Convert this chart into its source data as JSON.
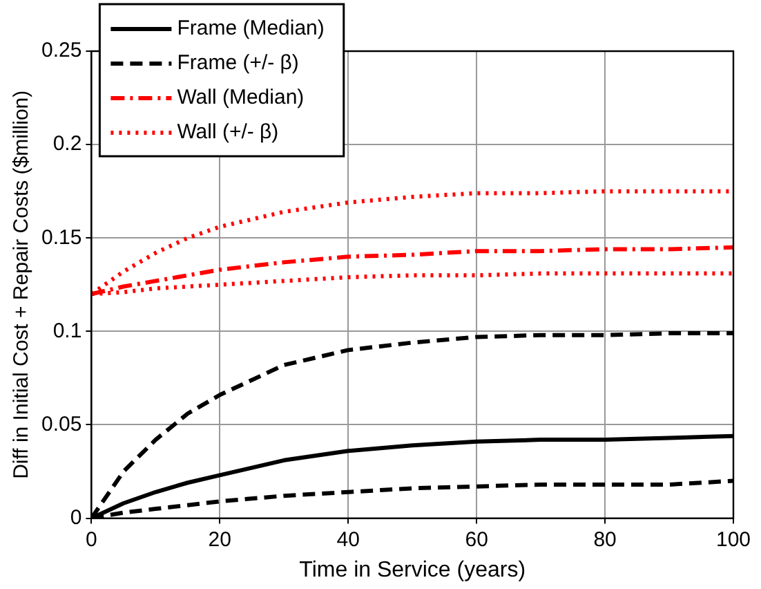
{
  "chart_data": {
    "type": "line",
    "xlabel": "Time in Service (years)",
    "ylabel": "Diff in Initial Cost + Repair Costs ($million)",
    "xlim": [
      0,
      100
    ],
    "xticks": [
      0,
      20,
      40,
      60,
      80,
      100
    ],
    "ylim": [
      0,
      0.25
    ],
    "yticks": [
      0,
      0.05,
      0.1,
      0.15,
      0.2,
      0.25
    ],
    "grid": true,
    "legend": "top left",
    "marker": "none",
    "x": [
      0,
      5,
      10,
      15,
      20,
      30,
      40,
      50,
      60,
      70,
      80,
      90,
      100
    ],
    "series": [
      {
        "name": "Frame (Median)",
        "color": "#000000",
        "line_style": "solid",
        "values": [
          0,
          0.008,
          0.014,
          0.019,
          0.023,
          0.031,
          0.036,
          0.039,
          0.041,
          0.042,
          0.042,
          0.043,
          0.044
        ]
      },
      {
        "name": "Frame (+/- β)",
        "color": "#000000",
        "line_style": "dashed",
        "values": [
          0,
          0.025,
          0.042,
          0.056,
          0.066,
          0.082,
          0.09,
          0.094,
          0.097,
          0.098,
          0.098,
          0.099,
          0.099
        ]
      },
      {
        "color": "#000000",
        "line_style": "dashed",
        "values": [
          0,
          0.003,
          0.005,
          0.007,
          0.009,
          0.012,
          0.014,
          0.016,
          0.017,
          0.018,
          0.018,
          0.018,
          0.02
        ]
      },
      {
        "name": "Wall (Median)",
        "color": "#ff0000",
        "line_style": "dashdot",
        "values": [
          0.12,
          0.124,
          0.127,
          0.13,
          0.133,
          0.137,
          0.14,
          0.141,
          0.143,
          0.143,
          0.144,
          0.144,
          0.145
        ]
      },
      {
        "name": "Wall (+/- β)",
        "color": "#ff0000",
        "line_style": "dotted",
        "values": [
          0.12,
          0.132,
          0.142,
          0.15,
          0.156,
          0.164,
          0.169,
          0.172,
          0.174,
          0.174,
          0.175,
          0.175,
          0.175
        ]
      },
      {
        "color": "#ff0000",
        "line_style": "dotted",
        "values": [
          0.12,
          0.121,
          0.123,
          0.124,
          0.125,
          0.127,
          0.129,
          0.13,
          0.13,
          0.131,
          0.131,
          0.131,
          0.131
        ]
      }
    ]
  }
}
